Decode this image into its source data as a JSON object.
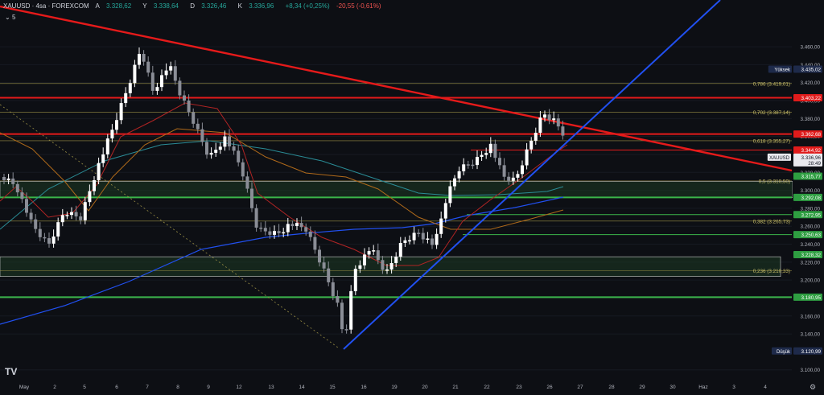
{
  "header": {
    "symbol": "XAUUSD · 4sa · FOREXCOM",
    "open_label": "A",
    "open": "3.328,62",
    "high_label": "Y",
    "high": "3.338,64",
    "low_label": "D",
    "low": "3.326,46",
    "close_label": "K",
    "close": "3.336,96",
    "change": "+8,34 (+0,25%)",
    "change2": "-20,55 (-0,61%)",
    "timeframe_badge": "5"
  },
  "price_axis": {
    "ticks": [
      "3.460,00",
      "3.440,00",
      "3.420,00",
      "3.400,00",
      "3.380,00",
      "3.360,00",
      "3.340,00",
      "3.320,00",
      "3.300,00",
      "3.280,00",
      "3.260,00",
      "3.240,00",
      "3.220,00",
      "3.200,00",
      "3.180,00",
      "3.160,00",
      "3.140,00",
      "3.100,00"
    ],
    "labels": [
      {
        "text": "3.435,02",
        "prefix": "Yüksek",
        "color": "#1e2a4a",
        "tcolor": "#ffffff"
      },
      {
        "text": "3.403,22",
        "color": "#e01b1b",
        "tcolor": "#ffffff"
      },
      {
        "text": "3.362,68",
        "color": "#e01b1b",
        "tcolor": "#ffffff"
      },
      {
        "text": "3.344,92",
        "color": "#e01b1b",
        "tcolor": "#ffffff"
      },
      {
        "text": "3.336,96",
        "sub": "28:49",
        "prefix": "XAUUSD",
        "color": "#e9e9ee",
        "tcolor": "#131722"
      },
      {
        "text": "3.315,77",
        "color": "#2e9e41",
        "tcolor": "#ffffff"
      },
      {
        "text": "3.292,08",
        "color": "#2e9e41",
        "tcolor": "#ffffff"
      },
      {
        "text": "3.272,95",
        "color": "#2e9e41",
        "tcolor": "#ffffff"
      },
      {
        "text": "3.250,63",
        "color": "#2e9e41",
        "tcolor": "#ffffff"
      },
      {
        "text": "3.228,32",
        "color": "#2e9e41",
        "tcolor": "#ffffff"
      },
      {
        "text": "3.180,95",
        "color": "#2e9e41",
        "tcolor": "#ffffff"
      },
      {
        "text": "3.120,99",
        "prefix": "Düşük",
        "color": "#1e2a4a",
        "tcolor": "#ffffff"
      }
    ]
  },
  "fib_labels": [
    "0,786 (3.419,01)",
    "0,702 (3.387,14)",
    "0,618 (3.355,27)",
    "0,5 (3.310,50)",
    "0,382 (3.265,73)",
    "0,236 (3.210,33)"
  ],
  "time_axis": [
    "May",
    "2",
    "5",
    "6",
    "7",
    "8",
    "9",
    "12",
    "13",
    "14",
    "15",
    "16",
    "19",
    "20",
    "21",
    "22",
    "23",
    "26",
    "27",
    "28",
    "29",
    "30",
    "Haz",
    "3",
    "4"
  ],
  "colors": {
    "up": "#ffffff",
    "down": "#8a8d96",
    "red_line": "#e51a1a",
    "blue_line": "#2150f0",
    "green_line": "#3bb54a",
    "fib": "#9a8f45"
  },
  "icons": {
    "logo": "tradingview-logo-icon",
    "settings": "settings-gear-icon"
  }
}
